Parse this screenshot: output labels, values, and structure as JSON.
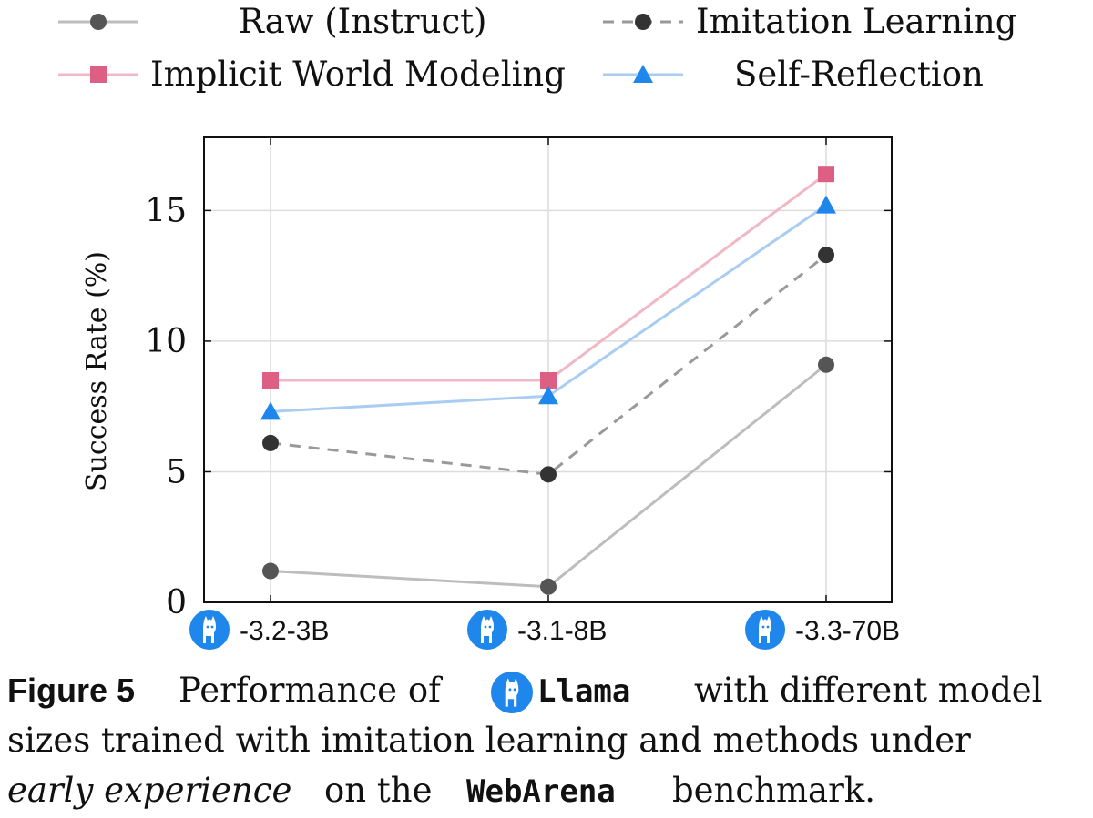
{
  "chart_data": {
    "type": "line",
    "categories": [
      "-3.2-3B",
      "-3.1-8B",
      "-3.3-70B"
    ],
    "category_icon": "llama-icon",
    "ylabel": "Success Rate (%)",
    "xlabel": "",
    "ylim": [
      0,
      17.8
    ],
    "yticks": [
      0,
      5,
      10,
      15
    ],
    "grid": true,
    "legend_position": "top",
    "series": [
      {
        "name": "Raw (Instruct)",
        "values": [
          1.2,
          0.6,
          9.1
        ],
        "color": "#bdbdbd",
        "marker_color": "#555555",
        "marker": "circle",
        "dashed": false
      },
      {
        "name": "Imitation Learning",
        "values": [
          6.1,
          4.9,
          13.3
        ],
        "color": "#999999",
        "marker_color": "#333333",
        "marker": "circle",
        "dashed": true
      },
      {
        "name": "Implicit World Modeling",
        "values": [
          8.5,
          8.5,
          16.4
        ],
        "color": "#f0b8c4",
        "marker_color": "#dd5f84",
        "marker": "square",
        "dashed": false
      },
      {
        "name": "Self-Reflection",
        "values": [
          7.3,
          7.9,
          15.2
        ],
        "color": "#a9cdf2",
        "marker_color": "#1f86ec",
        "marker": "triangle",
        "dashed": false
      }
    ]
  },
  "caption": {
    "figure_label": "Figure 5",
    "part1": "Performance of",
    "model_name": "Llama",
    "part2": "with different model",
    "line2": "sizes trained with imitation learning and methods under",
    "line3_italic": "early experience",
    "line3_mid": "on the",
    "benchmark": "WebArena",
    "line3_end": "benchmark."
  }
}
